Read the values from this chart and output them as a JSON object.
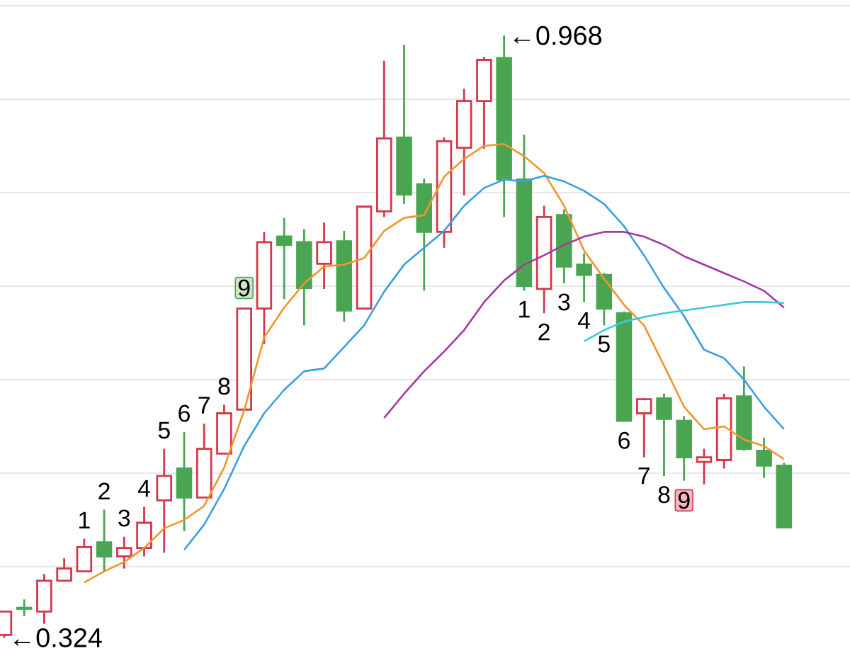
{
  "chart_data": {
    "type": "candlestick",
    "categories": [
      null,
      null,
      null,
      null,
      null,
      null,
      null,
      null,
      null,
      null,
      null,
      null,
      null,
      null,
      null,
      null,
      null,
      null,
      null,
      null,
      null,
      null,
      null,
      null,
      null,
      null,
      null,
      null,
      null,
      null,
      null,
      null,
      null,
      null,
      null,
      null,
      null,
      null,
      null,
      null
    ],
    "ohlc": [
      [
        0.327,
        0.353,
        0.324,
        0.352
      ],
      [
        0.356,
        0.365,
        0.347,
        0.355
      ],
      [
        0.352,
        0.392,
        0.339,
        0.385
      ],
      [
        0.385,
        0.409,
        0.385,
        0.398
      ],
      [
        0.395,
        0.43,
        0.394,
        0.421
      ],
      [
        0.426,
        0.461,
        0.394,
        0.411
      ],
      [
        0.411,
        0.432,
        0.398,
        0.42
      ],
      [
        0.42,
        0.464,
        0.411,
        0.447
      ],
      [
        0.471,
        0.526,
        0.415,
        0.497
      ],
      [
        0.505,
        0.544,
        0.438,
        0.474
      ],
      [
        0.474,
        0.553,
        0.474,
        0.526
      ],
      [
        0.521,
        0.573,
        0.521,
        0.564
      ],
      [
        0.568,
        0.677,
        0.567,
        0.676
      ],
      [
        0.676,
        0.758,
        0.638,
        0.747
      ],
      [
        0.753,
        0.773,
        0.686,
        0.744
      ],
      [
        0.747,
        0.761,
        0.658,
        0.698
      ],
      [
        0.724,
        0.768,
        0.697,
        0.747
      ],
      [
        0.748,
        0.759,
        0.662,
        0.674
      ],
      [
        0.676,
        0.786,
        0.676,
        0.785
      ],
      [
        0.78,
        0.941,
        0.774,
        0.858
      ],
      [
        0.859,
        0.958,
        0.788,
        0.798
      ],
      [
        0.809,
        0.815,
        0.695,
        0.758
      ],
      [
        0.758,
        0.859,
        0.741,
        0.855
      ],
      [
        0.848,
        0.911,
        0.797,
        0.898
      ],
      [
        0.898,
        0.945,
        0.847,
        0.942
      ],
      [
        0.944,
        0.968,
        0.774,
        0.814
      ],
      [
        0.814,
        0.862,
        0.695,
        0.7
      ],
      [
        0.697,
        0.786,
        0.671,
        0.774
      ],
      [
        0.776,
        0.782,
        0.703,
        0.721
      ],
      [
        0.723,
        0.735,
        0.683,
        0.712
      ],
      [
        0.712,
        0.714,
        0.658,
        0.676
      ],
      [
        0.671,
        0.673,
        0.555,
        0.556
      ],
      [
        0.564,
        0.58,
        0.517,
        0.579
      ],
      [
        0.58,
        0.585,
        0.497,
        0.558
      ],
      [
        0.556,
        0.561,
        0.492,
        0.517
      ],
      [
        0.512,
        0.526,
        0.488,
        0.517
      ],
      [
        0.514,
        0.585,
        0.505,
        0.58
      ],
      [
        0.582,
        0.614,
        0.524,
        0.526
      ],
      [
        0.524,
        0.538,
        0.495,
        0.508
      ],
      [
        0.508,
        0.511,
        0.442,
        0.442
      ]
    ],
    "colors": [
      "#d2394b",
      "#4aa552",
      "#d2394b",
      "#d2394b",
      "#d2394b",
      "#4aa552",
      "#d2394b",
      "#d2394b",
      "#d2394b",
      "#4aa552",
      "#d2394b",
      "#d2394b",
      "#d2394b",
      "#d2394b",
      "#4aa552",
      "#4aa552",
      "#d2394b",
      "#4aa552",
      "#d2394b",
      "#d2394b",
      "#4aa552",
      "#4aa552",
      "#d2394b",
      "#d2394b",
      "#d2394b",
      "#4aa552",
      "#4aa552",
      "#d2394b",
      "#4aa552",
      "#4aa552",
      "#4aa552",
      "#4aa552",
      "#d2394b",
      "#4aa552",
      "#4aa552",
      "#d2394b",
      "#d2394b",
      "#4aa552",
      "#4aa552",
      "#4aa552"
    ],
    "value_labels": [
      null,
      null,
      null,
      null,
      "1",
      "2",
      "3",
      "4",
      "5",
      "6",
      "7",
      "8",
      "9",
      null,
      null,
      null,
      null,
      null,
      null,
      null,
      null,
      null,
      null,
      null,
      null,
      null,
      "1",
      "2",
      "3",
      "4",
      "5",
      "6",
      "7",
      "8",
      "9",
      null,
      null,
      null,
      null,
      null
    ],
    "series": [
      {
        "type": "line",
        "color": "#f0952e",
        "values": [
          null,
          null,
          null,
          null,
          0.383,
          0.395,
          0.405,
          0.42,
          0.441,
          0.45,
          0.465,
          0.506,
          0.567,
          0.645,
          0.677,
          0.703,
          0.721,
          0.723,
          0.73,
          0.759,
          0.773,
          0.776,
          0.817,
          0.836,
          0.85,
          0.852,
          0.839,
          0.821,
          0.786,
          0.738,
          0.708,
          0.68,
          0.658,
          0.615,
          0.571,
          0.547,
          0.55,
          0.536,
          0.529,
          0.515
        ]
      },
      {
        "type": "line",
        "color": "#3a9fe0",
        "values": [
          null,
          null,
          null,
          null,
          null,
          null,
          null,
          null,
          null,
          0.418,
          0.445,
          0.483,
          0.529,
          0.564,
          0.589,
          0.609,
          0.612,
          0.635,
          0.658,
          0.694,
          0.723,
          0.741,
          0.759,
          0.786,
          0.805,
          0.814,
          0.812,
          0.818,
          0.812,
          0.802,
          0.788,
          0.764,
          0.733,
          0.698,
          0.668,
          0.632,
          0.623,
          0.6,
          0.571,
          0.547
        ]
      },
      {
        "type": "line",
        "color": "#a23aa0",
        "values": [
          null,
          null,
          null,
          null,
          null,
          null,
          null,
          null,
          null,
          null,
          null,
          null,
          null,
          null,
          null,
          null,
          null,
          null,
          null,
          0.559,
          0.585,
          0.609,
          0.63,
          0.653,
          0.683,
          0.706,
          0.723,
          0.733,
          0.744,
          0.753,
          0.758,
          0.758,
          0.753,
          0.744,
          0.732,
          0.723,
          0.714,
          0.705,
          0.695,
          0.677
        ]
      },
      {
        "type": "line",
        "color": "#3ac9d8",
        "values": [
          null,
          null,
          null,
          null,
          null,
          null,
          null,
          null,
          null,
          null,
          null,
          null,
          null,
          null,
          null,
          null,
          null,
          null,
          null,
          null,
          null,
          null,
          null,
          null,
          null,
          null,
          null,
          null,
          null,
          0.641,
          0.653,
          0.662,
          0.667,
          0.671,
          0.674,
          0.677,
          0.68,
          0.683,
          0.683,
          0.682
        ]
      }
    ],
    "annotations": [
      "←0.968",
      "←0.324"
    ],
    "yticks": [
      {
        "value": 0.4,
        "label": null
      },
      {
        "value": 0.5,
        "label": null
      },
      {
        "value": 0.6,
        "label": null
      },
      {
        "value": 0.7,
        "label": null
      },
      {
        "value": 0.8,
        "label": null
      },
      {
        "value": 0.9,
        "label": null
      },
      {
        "value": 1.0,
        "label": null
      }
    ],
    "grid": "y"
  }
}
